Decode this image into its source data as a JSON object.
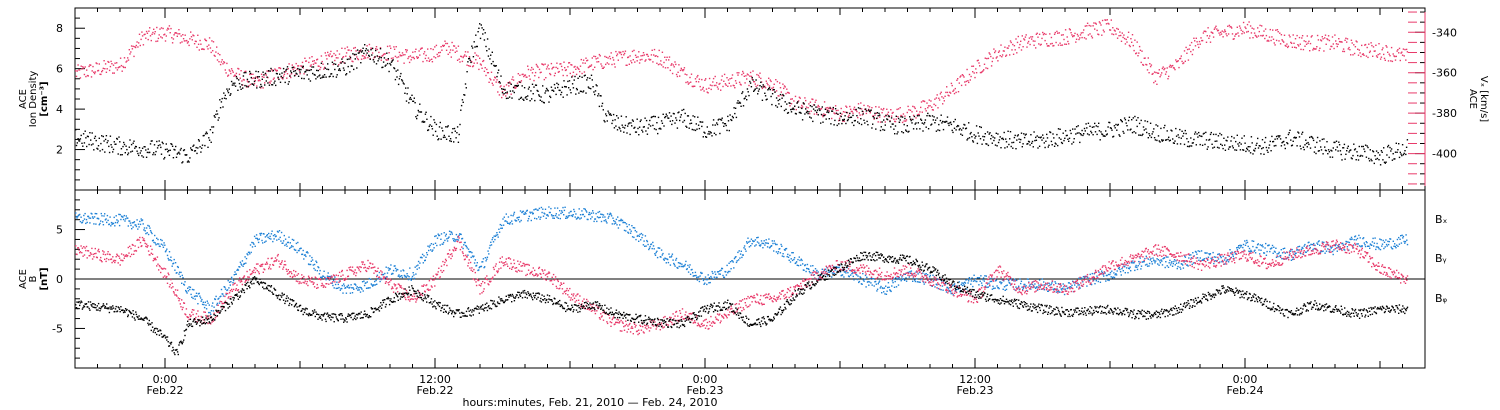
{
  "chart_data": [
    {
      "type": "scatter",
      "panel": "top",
      "ylabel_left": [
        "ACE",
        "Ion Density",
        "[cm⁻³]"
      ],
      "ylabel_right": [
        "ACE",
        "Vₓ [km/s]"
      ],
      "ylim_left": [
        0,
        9
      ],
      "yticks_left": [
        2,
        4,
        6,
        8
      ],
      "ylim_right": [
        -418,
        -328
      ],
      "yticks_right": [
        -340,
        -360,
        -380,
        -400
      ],
      "xlim_hours": [
        -4,
        56
      ],
      "series": [
        {
          "axis": "left",
          "color": "#000000",
          "x_hours": [
            -4,
            -2,
            0,
            1,
            2,
            2.5,
            3,
            4,
            6,
            8,
            9,
            10,
            11,
            12,
            13,
            13.5,
            14,
            15,
            16,
            17,
            18,
            19,
            19.5,
            20,
            21,
            22,
            23,
            24,
            25,
            26,
            27,
            28,
            29,
            30,
            31,
            32,
            33,
            34,
            35,
            36,
            37,
            38,
            39,
            40,
            41,
            42,
            43,
            44,
            45,
            46,
            47,
            48,
            49,
            50,
            51,
            52,
            53,
            54,
            55.2
          ],
          "values": [
            2.6,
            2.2,
            2.0,
            1.7,
            2.7,
            4.5,
            5.3,
            5.5,
            5.8,
            6.1,
            6.9,
            6.3,
            4.2,
            3.0,
            2.7,
            6.5,
            8.0,
            5.0,
            4.9,
            4.7,
            5.2,
            5.3,
            3.8,
            3.3,
            3.1,
            3.3,
            3.6,
            3.0,
            3.3,
            5.2,
            4.6,
            4.0,
            3.8,
            3.6,
            3.7,
            3.3,
            3.2,
            3.4,
            3.2,
            2.8,
            2.6,
            2.4,
            2.5,
            2.7,
            2.9,
            3.0,
            3.3,
            2.9,
            2.6,
            2.5,
            2.4,
            2.3,
            2.2,
            2.6,
            2.3,
            2.0,
            1.9,
            1.7,
            2.1
          ]
        },
        {
          "axis": "right",
          "color": "#e83a6a",
          "x_hours": [
            -4,
            -2,
            -1,
            0,
            1,
            2,
            2.5,
            3,
            4,
            5,
            6,
            7,
            8,
            9,
            10,
            11,
            12,
            12.5,
            13,
            14,
            15,
            16,
            17,
            18,
            19,
            20,
            21,
            22,
            23,
            24,
            25,
            26,
            27,
            28,
            29,
            30,
            31,
            32,
            33,
            34,
            35,
            36,
            37,
            38,
            39,
            40,
            41,
            42,
            43,
            44,
            45,
            46,
            47,
            48,
            49,
            50,
            51,
            52,
            53,
            54,
            55.2
          ],
          "values": [
            -360,
            -356,
            -342,
            -340,
            -343,
            -346,
            -355,
            -360,
            -365,
            -360,
            -357,
            -354,
            -351,
            -349,
            -350,
            -352,
            -350,
            -347,
            -350,
            -355,
            -370,
            -360,
            -359,
            -358,
            -355,
            -353,
            -351,
            -352,
            -360,
            -366,
            -364,
            -362,
            -365,
            -375,
            -377,
            -380,
            -378,
            -381,
            -380,
            -376,
            -368,
            -358,
            -350,
            -345,
            -343,
            -342,
            -339,
            -337,
            -345,
            -362,
            -356,
            -342,
            -340,
            -338,
            -341,
            -344,
            -345,
            -345,
            -348,
            -349,
            -352
          ]
        }
      ],
      "legend": "none"
    },
    {
      "type": "scatter",
      "panel": "bottom",
      "ylabel_left": [
        "ACE",
        "B",
        "[nT]"
      ],
      "ylim": [
        -9,
        9
      ],
      "yticks": [
        -5,
        0,
        5
      ],
      "zero_line": true,
      "xlim_hours": [
        -4,
        56
      ],
      "series": [
        {
          "name": "Bₓ",
          "color": "#000000",
          "x_hours": [
            -4,
            -2,
            -1,
            0,
            0.5,
            1,
            2,
            3,
            4,
            5,
            6,
            7,
            8,
            9,
            10,
            11,
            12,
            13,
            14,
            15,
            16,
            17,
            18,
            19,
            20,
            21,
            22,
            23,
            24,
            25,
            26,
            27,
            28,
            29,
            30,
            31,
            32,
            33,
            34,
            35,
            36,
            37,
            38,
            39,
            40,
            41,
            42,
            43,
            44,
            45,
            46,
            47,
            48,
            49,
            50,
            51,
            52,
            53,
            54,
            55.2
          ],
          "values": [
            -2.5,
            -3.0,
            -4.0,
            -6.0,
            -7.5,
            -4.5,
            -4.0,
            -2.0,
            0.0,
            -1.5,
            -3.0,
            -3.8,
            -3.9,
            -3.5,
            -2.0,
            -1.0,
            -2.5,
            -3.5,
            -3.0,
            -2.0,
            -1.5,
            -2.0,
            -3.0,
            -2.5,
            -3.5,
            -4.0,
            -4.3,
            -4.5,
            -3.0,
            -2.5,
            -4.5,
            -4.0,
            -1.5,
            0.0,
            1.2,
            2.5,
            2.2,
            2.0,
            1.0,
            -0.5,
            -1.5,
            -2.0,
            -2.5,
            -3.0,
            -3.3,
            -3.2,
            -3.0,
            -3.5,
            -3.6,
            -3.0,
            -2.0,
            -1.0,
            -1.5,
            -2.5,
            -3.5,
            -2.5,
            -3.0,
            -3.5,
            -3.0,
            -3.0
          ]
        },
        {
          "name": "Bᵧ",
          "color": "#1f82d6",
          "x_hours": [
            -4,
            -2,
            -1,
            0,
            1,
            2,
            3,
            4,
            5,
            6,
            7,
            8,
            9,
            10,
            11,
            12,
            13,
            14,
            15,
            16,
            17,
            18,
            19,
            20,
            21,
            22,
            23,
            24,
            25,
            26,
            27,
            28,
            29,
            30,
            31,
            32,
            33,
            34,
            35,
            36,
            37,
            38,
            39,
            40,
            41,
            42,
            43,
            44,
            45,
            46,
            47,
            48,
            49,
            50,
            51,
            52,
            53,
            54,
            55.2
          ],
          "values": [
            6.2,
            6.0,
            5.5,
            3.0,
            -1.0,
            -3.0,
            0.0,
            4.0,
            4.5,
            3.0,
            0.5,
            -1.0,
            -0.5,
            1.0,
            0.5,
            4.0,
            4.5,
            1.0,
            6.0,
            6.5,
            6.8,
            6.7,
            6.5,
            6.0,
            4.5,
            2.5,
            1.5,
            0.0,
            1.0,
            4.0,
            3.5,
            2.0,
            0.5,
            1.0,
            0.0,
            -1.0,
            0.5,
            0.0,
            -1.0,
            0.0,
            -0.5,
            -0.5,
            -0.5,
            -1.0,
            0.0,
            0.5,
            1.5,
            2.0,
            1.5,
            2.5,
            2.0,
            3.5,
            3.0,
            2.5,
            3.5,
            3.0,
            4.0,
            3.5,
            4.0
          ]
        },
        {
          "name": "Bᵩ",
          "color": "#e83a6a",
          "x_hours": [
            -4,
            -2,
            -1,
            0,
            1,
            2,
            3,
            4,
            5,
            6,
            7,
            8,
            9,
            10,
            11,
            12,
            13,
            14,
            15,
            16,
            17,
            18,
            19,
            20,
            21,
            22,
            23,
            24,
            25,
            26,
            27,
            28,
            29,
            30,
            31,
            32,
            33,
            34,
            35,
            36,
            37,
            38,
            39,
            40,
            41,
            42,
            43,
            44,
            45,
            46,
            47,
            48,
            49,
            50,
            51,
            52,
            53,
            54,
            55.2
          ],
          "values": [
            3.0,
            2.0,
            4.0,
            0.5,
            -3.5,
            -4.0,
            -1.0,
            1.0,
            2.0,
            0.0,
            -0.5,
            0.5,
            1.5,
            -0.5,
            -2.0,
            0.0,
            4.0,
            -1.0,
            2.0,
            1.0,
            0.5,
            -1.5,
            -3.0,
            -4.5,
            -5.0,
            -4.5,
            -3.5,
            -4.5,
            -3.5,
            -2.0,
            -2.0,
            -1.0,
            0.5,
            1.5,
            1.0,
            0.5,
            1.0,
            0.0,
            -1.0,
            -2.0,
            1.0,
            -1.0,
            -0.5,
            -1.0,
            0.0,
            1.5,
            2.0,
            3.0,
            2.5,
            1.5,
            2.0,
            2.5,
            1.5,
            2.5,
            3.0,
            3.5,
            3.0,
            1.0,
            0.0
          ]
        }
      ],
      "legend": "right"
    }
  ],
  "x_axis": {
    "tick_hours": [
      0,
      12,
      24,
      36,
      48
    ],
    "tick_times": [
      "0:00",
      "12:00",
      "0:00",
      "12:00",
      "0:00"
    ],
    "tick_dates": [
      "Feb.22",
      "Feb.22",
      "Feb.23",
      "Feb.23",
      "Feb.24"
    ],
    "xlabel": "hours:minutes, Feb. 21, 2010 — Feb. 24, 2010"
  },
  "colors": {
    "black": "#000000",
    "blue": "#1f82d6",
    "pink": "#e83a6a"
  }
}
